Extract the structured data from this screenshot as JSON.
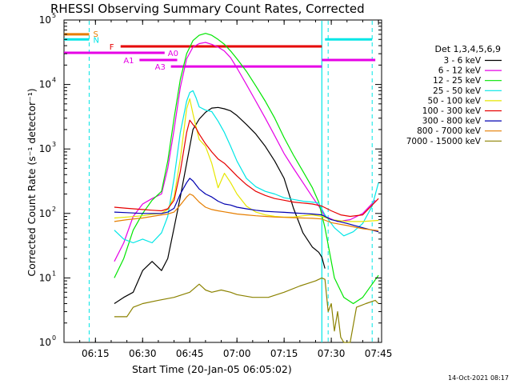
{
  "chart_data": {
    "type": "line",
    "title": "RHESSI Observing Summary Count Rates, Corrected",
    "xlabel": "Start Time (20-Jan-05 06:05:02)",
    "ylabel": "Corrected Count Rate (s⁻¹ detector⁻¹)",
    "footer": "14-Oct-2021 08:17",
    "yscale": "log",
    "ylim": [
      1,
      100000
    ],
    "xlim": [
      "06:05",
      "07:46"
    ],
    "x_ticks": [
      "06:15",
      "06:30",
      "06:45",
      "07:00",
      "07:15",
      "07:30",
      "07:45"
    ],
    "y_ticks": [
      {
        "value": 1,
        "mant": "10",
        "exp": "0"
      },
      {
        "value": 10,
        "mant": "10",
        "exp": "1"
      },
      {
        "value": 100,
        "mant": "10",
        "exp": "2"
      },
      {
        "value": 1000,
        "mant": "10",
        "exp": "3"
      },
      {
        "value": 10000,
        "mant": "10",
        "exp": "4"
      },
      {
        "value": 100000,
        "mant": "10",
        "exp": "5"
      }
    ],
    "legend_title": "Det 1,3,4,5,6,9",
    "legend_placement": "right",
    "series": [
      {
        "name": "3 - 6 keV",
        "color": "#000000",
        "x": [
          "06:21",
          "06:24",
          "06:27",
          "06:30",
          "06:33",
          "06:36",
          "06:38",
          "06:40",
          "06:42",
          "06:44",
          "06:46",
          "06:48",
          "06:50",
          "06:52",
          "06:54",
          "06:56",
          "06:58",
          "07:00",
          "07:03",
          "07:06",
          "07:09",
          "07:12",
          "07:15",
          "07:18",
          "07:21",
          "07:24",
          "07:26",
          "07:27",
          "07:28"
        ],
        "y": [
          4,
          5,
          6,
          13,
          18,
          13,
          20,
          60,
          180,
          600,
          2000,
          2900,
          3700,
          4300,
          4400,
          4200,
          3900,
          3300,
          2400,
          1700,
          1100,
          650,
          350,
          120,
          50,
          30,
          25,
          21,
          14
        ]
      },
      {
        "name": "6 - 12 keV",
        "color": "#e600e6",
        "x": [
          "06:21",
          "06:24",
          "06:27",
          "06:30",
          "06:33",
          "06:36",
          "06:38",
          "06:40",
          "06:42",
          "06:44",
          "06:46",
          "06:48",
          "06:50",
          "06:52",
          "06:54",
          "06:56",
          "06:58",
          "07:00",
          "07:03",
          "07:06",
          "07:09",
          "07:12",
          "07:15",
          "07:18",
          "07:21",
          "07:24",
          "07:26",
          "07:28",
          "07:32",
          "07:36",
          "07:40",
          "07:44"
        ],
        "y": [
          18,
          35,
          90,
          140,
          170,
          200,
          500,
          2000,
          9000,
          25000,
          38000,
          43000,
          45000,
          42000,
          38000,
          33000,
          26000,
          18000,
          10000,
          5500,
          3000,
          1600,
          850,
          500,
          300,
          180,
          130,
          90,
          75,
          80,
          100,
          160
        ]
      },
      {
        "name": "12 - 25 keV",
        "color": "#00e600",
        "x": [
          "06:21",
          "06:24",
          "06:27",
          "06:30",
          "06:33",
          "06:36",
          "06:38",
          "06:40",
          "06:42",
          "06:44",
          "06:46",
          "06:48",
          "06:50",
          "06:52",
          "06:54",
          "06:56",
          "06:58",
          "07:00",
          "07:03",
          "07:06",
          "07:09",
          "07:12",
          "07:15",
          "07:18",
          "07:21",
          "07:24",
          "07:26",
          "07:28",
          "07:31",
          "07:34",
          "07:37",
          "07:40",
          "07:43",
          "07:45"
        ],
        "y": [
          10,
          20,
          55,
          100,
          160,
          220,
          650,
          3000,
          12000,
          30000,
          48000,
          58000,
          62000,
          58000,
          50000,
          42000,
          33000,
          25000,
          16000,
          9500,
          5500,
          3000,
          1500,
          800,
          450,
          250,
          150,
          60,
          10,
          5,
          4,
          5,
          8,
          11
        ]
      },
      {
        "name": "25 - 50 keV",
        "color": "#00e6e6",
        "x": [
          "06:21",
          "06:24",
          "06:27",
          "06:30",
          "06:33",
          "06:36",
          "06:38",
          "06:40",
          "06:42",
          "06:44",
          "06:45",
          "06:46",
          "06:47",
          "06:48",
          "06:50",
          "06:52",
          "06:54",
          "06:56",
          "06:58",
          "07:00",
          "07:03",
          "07:06",
          "07:09",
          "07:12",
          "07:15",
          "07:18",
          "07:21",
          "07:24",
          "07:26",
          "07:28",
          "07:31",
          "07:34",
          "07:37",
          "07:40",
          "07:43",
          "07:45"
        ],
        "y": [
          55,
          40,
          35,
          40,
          35,
          50,
          90,
          350,
          1800,
          5500,
          7500,
          8000,
          6200,
          4500,
          4000,
          3800,
          2700,
          1800,
          1100,
          650,
          350,
          260,
          220,
          200,
          175,
          165,
          155,
          150,
          145,
          95,
          60,
          45,
          52,
          70,
          130,
          300
        ]
      },
      {
        "name": "50 - 100 keV",
        "color": "#e6e600",
        "x": [
          "06:21",
          "06:25",
          "06:30",
          "06:33",
          "06:36",
          "06:38",
          "06:40",
          "06:42",
          "06:44",
          "06:45",
          "06:46",
          "06:47",
          "06:48",
          "06:50",
          "06:52",
          "06:54",
          "06:56",
          "06:58",
          "07:00",
          "07:03",
          "07:06",
          "07:09",
          "07:12",
          "07:15",
          "07:18",
          "07:21",
          "07:24",
          "07:27",
          "07:30",
          "07:35",
          "07:40",
          "07:45"
        ],
        "y": [
          85,
          88,
          92,
          97,
          100,
          115,
          180,
          700,
          4200,
          6000,
          3500,
          2200,
          1400,
          1100,
          600,
          250,
          420,
          300,
          200,
          130,
          105,
          95,
          90,
          88,
          88,
          92,
          95,
          90,
          80,
          75,
          75,
          78
        ]
      },
      {
        "name": "100 - 300 keV",
        "color": "#e60000",
        "x": [
          "06:21",
          "06:25",
          "06:30",
          "06:33",
          "06:36",
          "06:38",
          "06:40",
          "06:42",
          "06:44",
          "06:45",
          "06:46",
          "06:47",
          "06:48",
          "06:50",
          "06:52",
          "06:54",
          "06:56",
          "06:58",
          "07:00",
          "07:03",
          "07:06",
          "07:09",
          "07:12",
          "07:15",
          "07:18",
          "07:21",
          "07:24",
          "07:27",
          "07:30",
          "07:33",
          "07:36",
          "07:40",
          "07:45"
        ],
        "y": [
          125,
          120,
          115,
          112,
          110,
          118,
          160,
          450,
          1800,
          2800,
          2400,
          2100,
          1700,
          1200,
          900,
          700,
          600,
          480,
          380,
          280,
          220,
          190,
          170,
          160,
          150,
          145,
          140,
          130,
          110,
          95,
          90,
          95,
          170
        ]
      },
      {
        "name": "300 - 800 keV",
        "color": "#0000b0",
        "x": [
          "06:21",
          "06:25",
          "06:30",
          "06:33",
          "06:36",
          "06:38",
          "06:40",
          "06:42",
          "06:44",
          "06:45",
          "06:46",
          "06:48",
          "06:50",
          "06:52",
          "06:54",
          "06:56",
          "06:58",
          "07:00",
          "07:03",
          "07:06",
          "07:09",
          "07:12",
          "07:15",
          "07:18",
          "07:21",
          "07:24",
          "07:27",
          "07:30",
          "07:35",
          "07:40",
          "07:45"
        ],
        "y": [
          105,
          103,
          100,
          100,
          100,
          105,
          120,
          200,
          300,
          350,
          320,
          240,
          200,
          180,
          155,
          140,
          135,
          125,
          118,
          112,
          108,
          106,
          104,
          102,
          100,
          98,
          95,
          80,
          70,
          60,
          52
        ]
      },
      {
        "name": "800 - 7000 keV",
        "color": "#e67e00",
        "x": [
          "06:21",
          "06:25",
          "06:30",
          "06:33",
          "06:36",
          "06:38",
          "06:40",
          "06:42",
          "06:44",
          "06:45",
          "06:46",
          "06:48",
          "06:50",
          "06:52",
          "06:54",
          "06:56",
          "06:58",
          "07:00",
          "07:03",
          "07:06",
          "07:09",
          "07:12",
          "07:15",
          "07:18",
          "07:21",
          "07:24",
          "07:27",
          "07:30",
          "07:35",
          "07:40",
          "07:45"
        ],
        "y": [
          75,
          80,
          85,
          90,
          95,
          98,
          105,
          135,
          180,
          200,
          190,
          150,
          125,
          115,
          110,
          106,
          102,
          98,
          95,
          92,
          90,
          88,
          87,
          86,
          85,
          84,
          82,
          72,
          65,
          58,
          54
        ]
      },
      {
        "name": "7000 - 15000 keV",
        "color": "#8b8200",
        "x": [
          "06:21",
          "06:25",
          "06:27",
          "06:30",
          "06:35",
          "06:40",
          "06:45",
          "06:48",
          "06:50",
          "06:52",
          "06:55",
          "06:58",
          "07:00",
          "07:05",
          "07:10",
          "07:15",
          "07:20",
          "07:25",
          "07:27",
          "07:28",
          "07:29",
          "07:30",
          "07:31",
          "07:32",
          "07:33",
          "07:34",
          "07:35",
          "07:36",
          "07:38",
          "07:41",
          "07:44",
          "07:45"
        ],
        "y": [
          2.5,
          2.5,
          3.5,
          4,
          4.5,
          5,
          6,
          8,
          6.5,
          6,
          6.5,
          6,
          5.5,
          5,
          5,
          6,
          7.5,
          9,
          10,
          9.5,
          3,
          4,
          1.5,
          3,
          1.2,
          1,
          0.9,
          0.9,
          3.5,
          4,
          4.5,
          4
        ]
      }
    ],
    "attenuator_states": [
      {
        "label": "A0",
        "start": "06:05",
        "end": "06:37",
        "level_count_rate": 31000
      },
      {
        "label": "A1",
        "start": "06:29",
        "end": "06:41",
        "level_count_rate": 24000
      },
      {
        "label": "A3",
        "start": "06:39",
        "end": "07:27",
        "level_count_rate": 19000
      },
      {
        "label": "",
        "start": "07:27",
        "end": "07:44",
        "level_count_rate": 24000
      }
    ],
    "flare_flag": {
      "label": "F",
      "start": "06:23",
      "end": "07:27",
      "level_count_rate": 39000
    },
    "saa_flag": {
      "label": "S",
      "start": "06:05",
      "end": "06:13",
      "level_count_rate": 60000
    },
    "night_flags": [
      {
        "label": "N",
        "start": "06:05",
        "end": "06:13",
        "level_count_rate": 50000
      },
      {
        "label": "",
        "start": "07:28",
        "end": "07:43",
        "level_count_rate": 50000
      }
    ],
    "night_boundaries": [
      "06:13",
      "07:29",
      "07:43"
    ],
    "day_boundary": "07:27"
  }
}
